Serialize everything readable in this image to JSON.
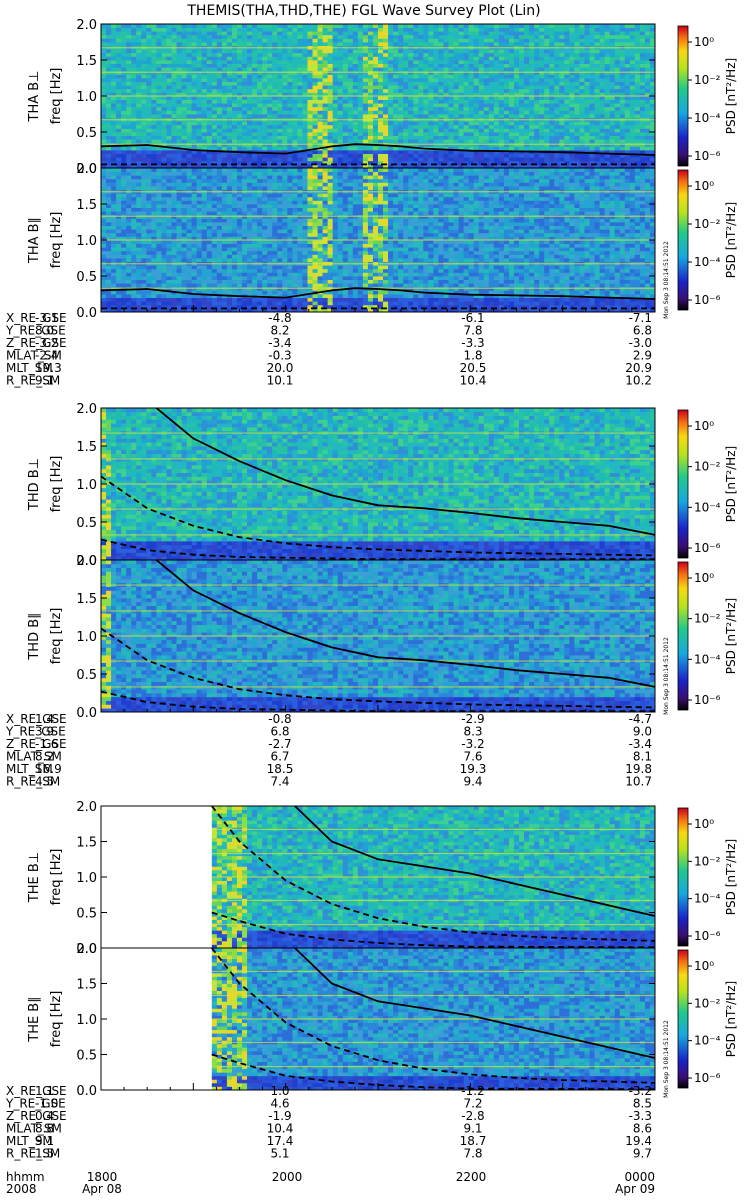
{
  "title": "THEMIS(THA,THD,THE) FGL Wave Survey Plot (Lin)",
  "stamp": "Mon Sep  3 08:14:51 2012",
  "colorbar": {
    "label": "PSD [nT²/Hz]",
    "ticks": [
      "10⁰",
      "10⁻²",
      "10⁻⁴",
      "10⁻⁶"
    ]
  },
  "freq_ticks": [
    "0.0",
    "0.5",
    "1.0",
    "1.5",
    "2.0"
  ],
  "time_axis": {
    "row_label": "hhmm",
    "date_label": "2008",
    "ticks": [
      "1800",
      "2000",
      "2200",
      "0000"
    ],
    "dates": [
      "Apr 08",
      "",
      "",
      "Apr 09"
    ]
  },
  "chart_data": [
    {
      "type": "heatmap",
      "probe": "THA",
      "panels": [
        {
          "ylabel_probe": "THA B⊥",
          "ylabel_unit": "freq [Hz]",
          "ylim": [
            0,
            2
          ]
        },
        {
          "ylabel_probe": "THA B∥",
          "ylabel_unit": "freq [Hz]",
          "ylim": [
            0,
            2
          ]
        }
      ],
      "empty_before_hour": 0,
      "high_power_hours": [
        [
          4.5,
          5.0
        ],
        [
          5.7,
          6.2
        ]
      ],
      "fce_solid": {
        "x_hours": [
          0,
          1,
          2,
          3,
          4,
          4.5,
          5,
          5.5,
          6,
          6.5,
          7,
          8,
          9,
          10,
          11,
          12
        ],
        "y_hz": [
          0.3,
          0.32,
          0.25,
          0.22,
          0.2,
          0.25,
          0.3,
          0.33,
          0.32,
          0.3,
          0.27,
          0.24,
          0.23,
          0.22,
          0.2,
          0.18
        ]
      },
      "fce_dashed": {
        "x_hours": [
          0,
          6,
          12
        ],
        "y_hz": [
          0.05,
          0.05,
          0.05
        ]
      },
      "ephemeris": {
        "labels": [
          "X_RE_GSE",
          "Y_RE_GSE",
          "Z_RE_GSE",
          "MLAT_SM",
          "MLT_SM",
          "R_RE_SM"
        ],
        "values": [
          [
            "-3.1",
            "-4.8",
            "-6.1",
            "-7.1"
          ],
          [
            "8.0",
            "8.2",
            "7.8",
            "6.8"
          ],
          [
            "-3.2",
            "-3.4",
            "-3.3",
            "-3.0"
          ],
          [
            "-2.4",
            "-0.3",
            "1.8",
            "2.9"
          ],
          [
            "19.3",
            "20.0",
            "20.5",
            "20.9"
          ],
          [
            "9.1",
            "10.1",
            "10.4",
            "10.2"
          ]
        ]
      }
    },
    {
      "type": "heatmap",
      "probe": "THD",
      "panels": [
        {
          "ylabel_probe": "THD B⊥",
          "ylabel_unit": "freq [Hz]",
          "ylim": [
            0,
            2
          ]
        },
        {
          "ylabel_probe": "THD B∥",
          "ylabel_unit": "freq [Hz]",
          "ylim": [
            0,
            2
          ]
        }
      ],
      "empty_before_hour": 0,
      "high_power_hours": [
        [
          0,
          0.2
        ]
      ],
      "fce_solid": {
        "x_hours": [
          1.2,
          2,
          3,
          4,
          5,
          6,
          7,
          8,
          9,
          10,
          11,
          12
        ],
        "y_hz": [
          2.0,
          1.6,
          1.3,
          1.05,
          0.85,
          0.72,
          0.68,
          0.62,
          0.55,
          0.5,
          0.45,
          0.33
        ]
      },
      "fce_dashed": {
        "x_hours": [
          0,
          1,
          2,
          3,
          4,
          5,
          6,
          7,
          8,
          9,
          10,
          11,
          12
        ],
        "y_hz": [
          1.1,
          0.68,
          0.45,
          0.3,
          0.22,
          0.17,
          0.14,
          0.12,
          0.1,
          0.09,
          0.08,
          0.07,
          0.06
        ]
      },
      "fci_dashed": {
        "x_hours": [
          0,
          1,
          2,
          3,
          4,
          5,
          6,
          12
        ],
        "y_hz": [
          0.27,
          0.13,
          0.07,
          0.04,
          0.03,
          0.02,
          0.01,
          0.01
        ]
      },
      "ephemeris": {
        "labels": [
          "X_RE_GSE",
          "Y_RE_GSE",
          "Z_RE_GSE",
          "MLAT_SM",
          "MLT_SM",
          "R_RE_SM"
        ],
        "values": [
          [
            "1.4",
            "-0.8",
            "-2.9",
            "-4.7"
          ],
          [
            "3.9",
            "6.8",
            "8.3",
            "9.0"
          ],
          [
            "-1.6",
            "-2.7",
            "-3.2",
            "-3.4"
          ],
          [
            "8.2",
            "6.7",
            "7.6",
            "8.1"
          ],
          [
            "16.9",
            "18.5",
            "19.3",
            "19.8"
          ],
          [
            "4.5",
            "7.4",
            "9.4",
            "10.7"
          ]
        ]
      }
    },
    {
      "type": "heatmap",
      "probe": "THE",
      "panels": [
        {
          "ylabel_probe": "THE B⊥",
          "ylabel_unit": "freq [Hz]",
          "ylim": [
            0,
            2
          ]
        },
        {
          "ylabel_probe": "THE B∥",
          "ylabel_unit": "freq [Hz]",
          "ylim": [
            0,
            2
          ]
        }
      ],
      "empty_before_hour": 2.4,
      "high_power_hours": [
        [
          2.4,
          3.2
        ]
      ],
      "fce_solid": {
        "x_hours": [
          4.2,
          5,
          6,
          7,
          8,
          9,
          10,
          11,
          12
        ],
        "y_hz": [
          2.0,
          1.5,
          1.25,
          1.15,
          1.05,
          0.9,
          0.75,
          0.6,
          0.45
        ]
      },
      "fce_dashed": {
        "x_hours": [
          2.4,
          3,
          4,
          5,
          6,
          7,
          8,
          9,
          10,
          11,
          12
        ],
        "y_hz": [
          2.0,
          1.5,
          0.95,
          0.62,
          0.42,
          0.3,
          0.22,
          0.17,
          0.14,
          0.12,
          0.1
        ]
      },
      "fci_dashed": {
        "x_hours": [
          2.4,
          3,
          4,
          5,
          6,
          7,
          8,
          12
        ],
        "y_hz": [
          0.5,
          0.38,
          0.2,
          0.12,
          0.07,
          0.04,
          0.02,
          0.01
        ]
      },
      "ephemeris": {
        "labels": [
          "X_RE_GSE",
          "Y_RE_GSE",
          "Z_RE_GSE",
          "MLAT_SM",
          "MLT_SM",
          "R_RE_SM"
        ],
        "values": [
          [
            "1.1",
            "1.0",
            "-1.2",
            "-3.2"
          ],
          [
            "-1.0",
            "4.6",
            "7.2",
            "8.5"
          ],
          [
            "0.4",
            "-1.9",
            "-2.8",
            "-3.3"
          ],
          [
            "8.8",
            "10.4",
            "9.1",
            "8.6"
          ],
          [
            "9.1",
            "17.4",
            "18.7",
            "19.4"
          ],
          [
            "1.5",
            "5.1",
            "7.8",
            "9.7"
          ]
        ]
      }
    }
  ]
}
